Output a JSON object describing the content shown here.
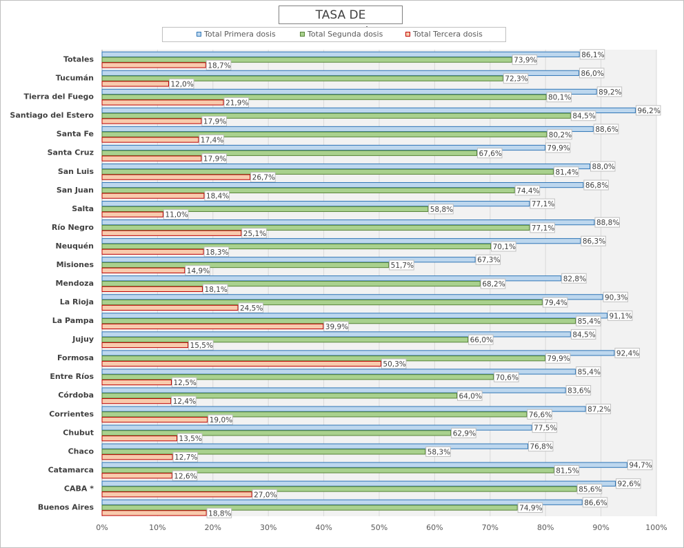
{
  "chart_data": {
    "type": "bar",
    "orientation": "horizontal",
    "title": "TASA DE VACUNACIÓN",
    "categories": [
      "Totales",
      "Tucumán",
      "Tierra del Fuego",
      "Santiago del Estero",
      "Santa Fe",
      "Santa Cruz",
      "San Luis",
      "San Juan",
      "Salta",
      "Río Negro",
      "Neuquén",
      "Misiones",
      "Mendoza",
      "La Rioja",
      "La Pampa",
      "Jujuy",
      "Formosa",
      "Entre Ríos",
      "Córdoba",
      "Corrientes",
      "Chubut",
      "Chaco",
      "Catamarca",
      "CABA *",
      "Buenos Aires"
    ],
    "series": [
      {
        "name": "Total Primera dosis",
        "color": "#bdd7ee",
        "border": "#2e75b6",
        "values": [
          86.1,
          86.0,
          89.2,
          96.2,
          88.6,
          79.9,
          88.0,
          86.8,
          77.1,
          88.8,
          86.3,
          67.3,
          82.8,
          90.3,
          91.1,
          84.5,
          92.4,
          85.4,
          83.6,
          87.2,
          77.5,
          76.8,
          94.7,
          92.6,
          86.6
        ],
        "labels": [
          "86,1%",
          "86,0%",
          "89,2%",
          "96,2%",
          "88,6%",
          "79,9%",
          "88,0%",
          "86,8%",
          "77,1%",
          "88,8%",
          "86,3%",
          "67,3%",
          "82,8%",
          "90,3%",
          "91,1%",
          "84,5%",
          "92,4%",
          "85,4%",
          "83,6%",
          "87,2%",
          "77,5%",
          "76,8%",
          "94,7%",
          "92,6%",
          "86,6%"
        ]
      },
      {
        "name": "Total Segunda dosis",
        "color": "#a9d18e",
        "border": "#548235",
        "values": [
          73.9,
          72.3,
          80.1,
          84.5,
          80.2,
          67.6,
          81.4,
          74.4,
          58.8,
          77.1,
          70.1,
          51.7,
          68.2,
          79.4,
          85.4,
          66.0,
          79.9,
          70.6,
          64.0,
          76.6,
          62.9,
          58.3,
          81.5,
          85.6,
          74.9
        ],
        "labels": [
          "73,9%",
          "72,3%",
          "80,1%",
          "84,5%",
          "80,2%",
          "67,6%",
          "81,4%",
          "74,4%",
          "58,8%",
          "77,1%",
          "70,1%",
          "51,7%",
          "68,2%",
          "79,4%",
          "85,4%",
          "66,0%",
          "79,9%",
          "70,6%",
          "64,0%",
          "76,6%",
          "62,9%",
          "58,3%",
          "81,5%",
          "85,6%",
          "74,9%"
        ]
      },
      {
        "name": "Total Tercera dosis",
        "color": "#f8cbad",
        "border": "#c00000",
        "values": [
          18.7,
          12.0,
          21.9,
          17.9,
          17.4,
          17.9,
          26.7,
          18.4,
          11.0,
          25.1,
          18.3,
          14.9,
          18.1,
          24.5,
          39.9,
          15.5,
          50.3,
          12.5,
          12.4,
          19.0,
          13.5,
          12.7,
          12.6,
          27.0,
          18.8
        ],
        "labels": [
          "18,7%",
          "12,0%",
          "21,9%",
          "17,9%",
          "17,4%",
          "17,9%",
          "26,7%",
          "18,4%",
          "11,0%",
          "25,1%",
          "18,3%",
          "14,9%",
          "18,1%",
          "24,5%",
          "39,9%",
          "15,5%",
          "50,3%",
          "12,5%",
          "12,4%",
          "19,0%",
          "13,5%",
          "12,7%",
          "12,6%",
          "27,0%",
          "18,8%"
        ]
      }
    ],
    "xlim": [
      0,
      100
    ],
    "x_ticks": [
      0,
      10,
      20,
      30,
      40,
      50,
      60,
      70,
      80,
      90,
      100
    ],
    "x_tick_labels": [
      "0%",
      "10%",
      "20%",
      "30%",
      "40%",
      "50%",
      "60%",
      "70%",
      "80%",
      "90%",
      "100%"
    ],
    "grid": true,
    "legend_position": "top",
    "plot_background": "#f2f2f2"
  }
}
